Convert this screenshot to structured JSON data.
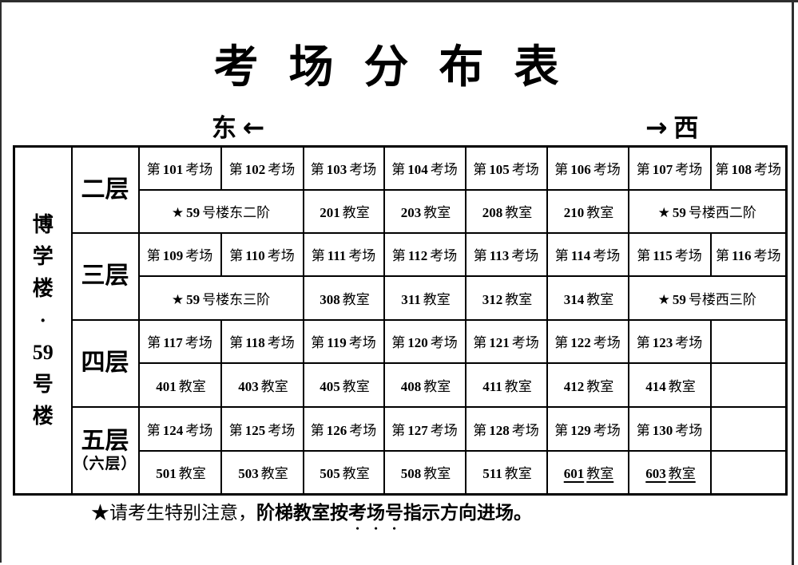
{
  "title": "考 场 分 布 表",
  "directions": {
    "east_label": "东",
    "east_arrow": "←",
    "west_arrow": "→",
    "west_label": "西"
  },
  "building": {
    "chars": [
      "博",
      "学",
      "楼",
      "·",
      "59",
      "号",
      "楼"
    ]
  },
  "floors": [
    {
      "name": "二层",
      "sub": "",
      "exams": [
        "第101考场",
        "第102考场",
        "第103考场",
        "第104考场",
        "第105考场",
        "第106考场",
        "第107考场",
        "第108考场"
      ],
      "rooms": [
        "★59号楼东二阶",
        "201教室",
        "203教室",
        "208教室",
        "210教室",
        "★59号楼西二阶"
      ]
    },
    {
      "name": "三层",
      "sub": "",
      "exams": [
        "第109考场",
        "第110考场",
        "第111考场",
        "第112考场",
        "第113考场",
        "第114考场",
        "第115考场",
        "第116考场"
      ],
      "rooms": [
        "★59号楼东三阶",
        "308教室",
        "311教室",
        "312教室",
        "314教室",
        "★59号楼西三阶"
      ]
    },
    {
      "name": "四层",
      "sub": "",
      "exams": [
        "第117考场",
        "第118考场",
        "第119考场",
        "第120考场",
        "第121考场",
        "第122考场",
        "第123考场",
        ""
      ],
      "rooms": [
        "401教室",
        "403教室",
        "405教室",
        "408教室",
        "411教室",
        "412教室",
        "414教室",
        ""
      ]
    },
    {
      "name": "五层",
      "sub": "（六层）",
      "exams": [
        "第124考场",
        "第125考场",
        "第126考场",
        "第127考场",
        "第128考场",
        "第129考场",
        "第130考场",
        ""
      ],
      "rooms": [
        "501教室",
        "503教室",
        "505教室",
        "508教室",
        "511教室",
        "601教室",
        "603教室",
        ""
      ]
    }
  ],
  "footnote": {
    "prefix": "★请考生特别注意，",
    "bold_pre": "阶梯教室按",
    "emphasized": "考场号",
    "bold_post": "指示方向进场。"
  }
}
